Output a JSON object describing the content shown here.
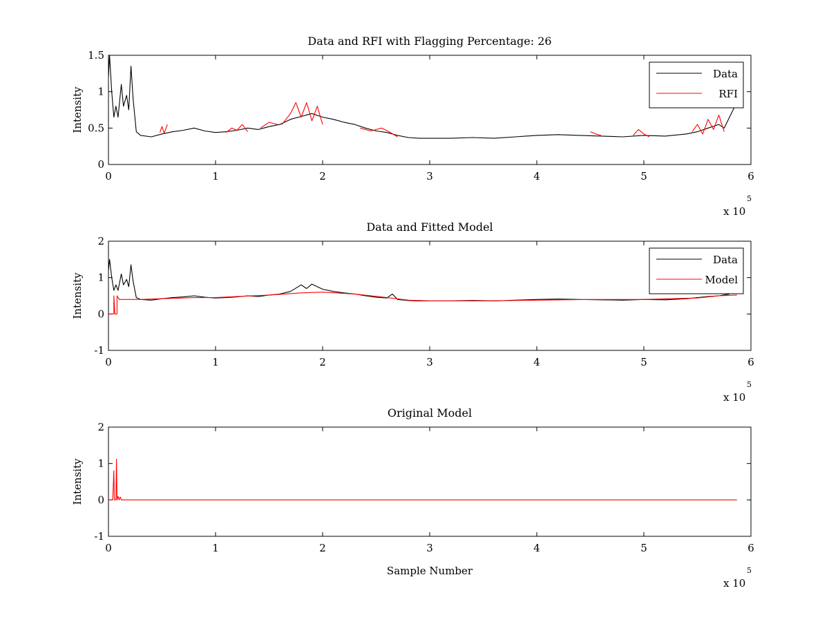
{
  "chart_data": [
    {
      "type": "line",
      "title": "Data and RFI with Flagging Percentage: 26",
      "xlabel": "",
      "ylabel": "Intensity",
      "xlim": [
        0,
        6
      ],
      "ylim": [
        0,
        1.5
      ],
      "x_multiplier": "x 10",
      "x_multiplier_exp": "5",
      "xticks": [
        0,
        1,
        2,
        3,
        4,
        5,
        6
      ],
      "yticks": [
        0,
        0.5,
        1,
        1.5
      ],
      "xtick_labels": [
        "0",
        "1",
        "2",
        "3",
        "4",
        "5",
        "6"
      ],
      "ytick_labels": [
        "0",
        "0.5",
        "1",
        "1.5"
      ],
      "legend_position": "top-right",
      "legend": [
        {
          "name": "Data",
          "color": "#000000"
        },
        {
          "name": "RFI",
          "color": "#ff0000"
        }
      ],
      "series": [
        {
          "name": "Data",
          "color": "#000000",
          "points": [
            [
              0,
              1.2
            ],
            [
              0.01,
              1.5
            ],
            [
              0.03,
              1.0
            ],
            [
              0.05,
              0.65
            ],
            [
              0.07,
              0.8
            ],
            [
              0.09,
              0.65
            ],
            [
              0.12,
              1.1
            ],
            [
              0.14,
              0.8
            ],
            [
              0.17,
              0.95
            ],
            [
              0.19,
              0.75
            ],
            [
              0.21,
              1.35
            ],
            [
              0.23,
              0.9
            ],
            [
              0.26,
              0.45
            ],
            [
              0.3,
              0.4
            ],
            [
              0.4,
              0.38
            ],
            [
              0.5,
              0.42
            ],
            [
              0.6,
              0.45
            ],
            [
              0.7,
              0.47
            ],
            [
              0.8,
              0.5
            ],
            [
              0.9,
              0.46
            ],
            [
              1.0,
              0.44
            ],
            [
              1.1,
              0.45
            ],
            [
              1.2,
              0.47
            ],
            [
              1.3,
              0.5
            ],
            [
              1.4,
              0.48
            ],
            [
              1.5,
              0.52
            ],
            [
              1.6,
              0.55
            ],
            [
              1.7,
              0.62
            ],
            [
              1.8,
              0.66
            ],
            [
              1.9,
              0.7
            ],
            [
              2.0,
              0.65
            ],
            [
              2.1,
              0.62
            ],
            [
              2.2,
              0.58
            ],
            [
              2.3,
              0.55
            ],
            [
              2.4,
              0.5
            ],
            [
              2.5,
              0.46
            ],
            [
              2.6,
              0.44
            ],
            [
              2.7,
              0.4
            ],
            [
              2.8,
              0.37
            ],
            [
              2.9,
              0.36
            ],
            [
              3.0,
              0.36
            ],
            [
              3.2,
              0.36
            ],
            [
              3.4,
              0.37
            ],
            [
              3.6,
              0.36
            ],
            [
              3.8,
              0.38
            ],
            [
              4.0,
              0.4
            ],
            [
              4.2,
              0.41
            ],
            [
              4.4,
              0.4
            ],
            [
              4.6,
              0.39
            ],
            [
              4.8,
              0.38
            ],
            [
              5.0,
              0.4
            ],
            [
              5.2,
              0.39
            ],
            [
              5.4,
              0.42
            ],
            [
              5.5,
              0.45
            ],
            [
              5.6,
              0.5
            ],
            [
              5.7,
              0.55
            ],
            [
              5.75,
              0.5
            ],
            [
              5.8,
              0.65
            ],
            [
              5.85,
              0.8
            ]
          ]
        },
        {
          "name": "RFI",
          "color": "#ff0000",
          "segments": [
            [
              [
                0.48,
                0.44
              ],
              [
                0.5,
                0.52
              ],
              [
                0.52,
                0.43
              ],
              [
                0.55,
                0.55
              ]
            ],
            [
              [
                1.1,
                0.44
              ],
              [
                1.15,
                0.5
              ],
              [
                1.2,
                0.47
              ],
              [
                1.25,
                0.55
              ],
              [
                1.3,
                0.45
              ]
            ],
            [
              [
                1.42,
                0.5
              ],
              [
                1.5,
                0.58
              ],
              [
                1.58,
                0.55
              ]
            ],
            [
              [
                1.62,
                0.55
              ],
              [
                1.7,
                0.7
              ],
              [
                1.75,
                0.85
              ],
              [
                1.8,
                0.65
              ],
              [
                1.85,
                0.85
              ],
              [
                1.9,
                0.6
              ],
              [
                1.95,
                0.8
              ],
              [
                2.0,
                0.55
              ]
            ],
            [
              [
                2.35,
                0.5
              ],
              [
                2.45,
                0.46
              ],
              [
                2.55,
                0.5
              ],
              [
                2.62,
                0.45
              ],
              [
                2.7,
                0.38
              ]
            ],
            [
              [
                4.5,
                0.45
              ],
              [
                4.55,
                0.42
              ],
              [
                4.6,
                0.4
              ]
            ],
            [
              [
                4.9,
                0.4
              ],
              [
                4.95,
                0.48
              ],
              [
                5.0,
                0.42
              ],
              [
                5.05,
                0.38
              ]
            ],
            [
              [
                5.45,
                0.45
              ],
              [
                5.5,
                0.55
              ],
              [
                5.55,
                0.42
              ],
              [
                5.6,
                0.62
              ],
              [
                5.65,
                0.48
              ],
              [
                5.7,
                0.68
              ],
              [
                5.75,
                0.45
              ]
            ]
          ]
        }
      ]
    },
    {
      "type": "line",
      "title": "Data and Fitted Model",
      "xlabel": "",
      "ylabel": "Intensity",
      "xlim": [
        0,
        6
      ],
      "ylim": [
        -1,
        2
      ],
      "x_multiplier": "x 10",
      "x_multiplier_exp": "5",
      "xticks": [
        0,
        1,
        2,
        3,
        4,
        5,
        6
      ],
      "yticks": [
        -1,
        0,
        1,
        2
      ],
      "xtick_labels": [
        "0",
        "1",
        "2",
        "3",
        "4",
        "5",
        "6"
      ],
      "ytick_labels": [
        "-1",
        "0",
        "1",
        "2"
      ],
      "legend_position": "top-right",
      "legend": [
        {
          "name": "Data",
          "color": "#000000"
        },
        {
          "name": "Model",
          "color": "#ff0000"
        }
      ],
      "series": [
        {
          "name": "Data",
          "color": "#000000",
          "points": [
            [
              0,
              1.2
            ],
            [
              0.01,
              1.5
            ],
            [
              0.03,
              1.0
            ],
            [
              0.05,
              0.65
            ],
            [
              0.07,
              0.8
            ],
            [
              0.09,
              0.65
            ],
            [
              0.12,
              1.1
            ],
            [
              0.14,
              0.8
            ],
            [
              0.17,
              0.95
            ],
            [
              0.19,
              0.75
            ],
            [
              0.21,
              1.35
            ],
            [
              0.23,
              0.9
            ],
            [
              0.26,
              0.45
            ],
            [
              0.3,
              0.4
            ],
            [
              0.4,
              0.38
            ],
            [
              0.5,
              0.42
            ],
            [
              0.6,
              0.45
            ],
            [
              0.7,
              0.47
            ],
            [
              0.8,
              0.5
            ],
            [
              0.9,
              0.46
            ],
            [
              1.0,
              0.44
            ],
            [
              1.1,
              0.45
            ],
            [
              1.2,
              0.47
            ],
            [
              1.3,
              0.5
            ],
            [
              1.4,
              0.48
            ],
            [
              1.5,
              0.52
            ],
            [
              1.6,
              0.55
            ],
            [
              1.7,
              0.62
            ],
            [
              1.8,
              0.8
            ],
            [
              1.85,
              0.7
            ],
            [
              1.9,
              0.82
            ],
            [
              2.0,
              0.68
            ],
            [
              2.1,
              0.62
            ],
            [
              2.2,
              0.58
            ],
            [
              2.3,
              0.55
            ],
            [
              2.4,
              0.5
            ],
            [
              2.5,
              0.46
            ],
            [
              2.6,
              0.44
            ],
            [
              2.65,
              0.55
            ],
            [
              2.7,
              0.4
            ],
            [
              2.8,
              0.37
            ],
            [
              2.9,
              0.36
            ],
            [
              3.0,
              0.36
            ],
            [
              3.2,
              0.36
            ],
            [
              3.4,
              0.37
            ],
            [
              3.6,
              0.36
            ],
            [
              3.8,
              0.38
            ],
            [
              4.0,
              0.4
            ],
            [
              4.2,
              0.41
            ],
            [
              4.4,
              0.4
            ],
            [
              4.6,
              0.39
            ],
            [
              4.8,
              0.38
            ],
            [
              5.0,
              0.4
            ],
            [
              5.2,
              0.39
            ],
            [
              5.4,
              0.42
            ],
            [
              5.5,
              0.45
            ],
            [
              5.6,
              0.48
            ],
            [
              5.7,
              0.5
            ],
            [
              5.8,
              0.55
            ]
          ]
        },
        {
          "name": "Model",
          "color": "#ff0000",
          "points": [
            [
              0,
              0.0
            ],
            [
              0.05,
              0.0
            ],
            [
              0.05,
              0.5
            ],
            [
              0.06,
              0.0
            ],
            [
              0.08,
              0.0
            ],
            [
              0.08,
              0.5
            ],
            [
              0.1,
              0.4
            ],
            [
              0.3,
              0.4
            ],
            [
              0.5,
              0.42
            ],
            [
              0.8,
              0.45
            ],
            [
              1.0,
              0.45
            ],
            [
              1.2,
              0.48
            ],
            [
              1.5,
              0.52
            ],
            [
              1.8,
              0.58
            ],
            [
              2.0,
              0.6
            ],
            [
              2.3,
              0.55
            ],
            [
              2.6,
              0.45
            ],
            [
              2.8,
              0.38
            ],
            [
              3.0,
              0.36
            ],
            [
              3.5,
              0.36
            ],
            [
              4.0,
              0.38
            ],
            [
              4.5,
              0.4
            ],
            [
              5.0,
              0.4
            ],
            [
              5.5,
              0.44
            ],
            [
              5.7,
              0.5
            ],
            [
              5.87,
              0.52
            ]
          ]
        }
      ]
    },
    {
      "type": "line",
      "title": "Original Model",
      "xlabel": "Sample Number",
      "ylabel": "Intensity",
      "xlim": [
        0,
        6
      ],
      "ylim": [
        -1,
        2
      ],
      "x_multiplier": "x 10",
      "x_multiplier_exp": "5",
      "xticks": [
        0,
        1,
        2,
        3,
        4,
        5,
        6
      ],
      "yticks": [
        -1,
        0,
        1,
        2
      ],
      "xtick_labels": [
        "0",
        "1",
        "2",
        "3",
        "4",
        "5",
        "6"
      ],
      "ytick_labels": [
        "-1",
        "0",
        "1",
        "2"
      ],
      "legend_position": "none",
      "legend": [],
      "series": [
        {
          "name": "",
          "color": "#ff0000",
          "points": [
            [
              0,
              0
            ],
            [
              0.04,
              0
            ],
            [
              0.05,
              0.8
            ],
            [
              0.055,
              0.0
            ],
            [
              0.07,
              0.0
            ],
            [
              0.075,
              1.12
            ],
            [
              0.08,
              0.0
            ],
            [
              0.09,
              0.1
            ],
            [
              0.1,
              0.0
            ],
            [
              0.11,
              0.08
            ],
            [
              0.12,
              0.0
            ],
            [
              5.87,
              0.0
            ]
          ]
        }
      ]
    }
  ]
}
